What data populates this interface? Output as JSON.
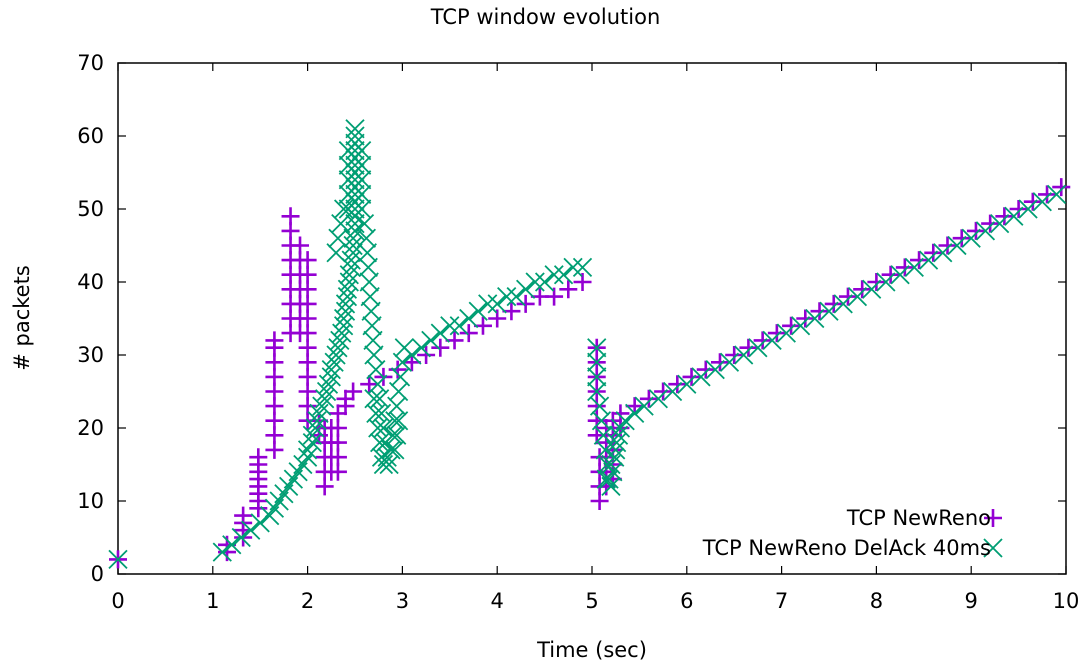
{
  "chart_data": {
    "type": "scatter",
    "title": "TCP window evolution",
    "xlabel": "Time (sec)",
    "ylabel": "# packets",
    "xlim": [
      0,
      10
    ],
    "ylim": [
      0,
      70
    ],
    "xticks": [
      "0",
      "1",
      "2",
      "3",
      "4",
      "5",
      "6",
      "7",
      "8",
      "9",
      "10"
    ],
    "yticks": [
      "0",
      "10",
      "20",
      "30",
      "40",
      "50",
      "60",
      "70"
    ],
    "grid": false,
    "legend_position": "bottom-right",
    "series": [
      {
        "name": "TCP NewReno",
        "marker": "plus",
        "color": "#9400d3",
        "points": [
          [
            0,
            2
          ],
          [
            1.15,
            3
          ],
          [
            1.15,
            4
          ],
          [
            1.32,
            5
          ],
          [
            1.32,
            6
          ],
          [
            1.32,
            7
          ],
          [
            1.32,
            8
          ],
          [
            1.48,
            9
          ],
          [
            1.48,
            10
          ],
          [
            1.48,
            11
          ],
          [
            1.48,
            12
          ],
          [
            1.48,
            13
          ],
          [
            1.48,
            14
          ],
          [
            1.48,
            15
          ],
          [
            1.48,
            16
          ],
          [
            1.65,
            17
          ],
          [
            1.65,
            19
          ],
          [
            1.65,
            21
          ],
          [
            1.65,
            23
          ],
          [
            1.65,
            25
          ],
          [
            1.65,
            27
          ],
          [
            1.65,
            29
          ],
          [
            1.65,
            31
          ],
          [
            1.65,
            32
          ],
          [
            1.82,
            33
          ],
          [
            1.82,
            35
          ],
          [
            1.82,
            37
          ],
          [
            1.82,
            39
          ],
          [
            1.82,
            41
          ],
          [
            1.82,
            43
          ],
          [
            1.82,
            45
          ],
          [
            1.82,
            47
          ],
          [
            1.82,
            49
          ],
          [
            1.92,
            33
          ],
          [
            1.92,
            35
          ],
          [
            1.92,
            37
          ],
          [
            1.92,
            39
          ],
          [
            1.92,
            41
          ],
          [
            1.92,
            43
          ],
          [
            1.92,
            45
          ],
          [
            2.0,
            21
          ],
          [
            2.0,
            23
          ],
          [
            2.0,
            25
          ],
          [
            2.0,
            27
          ],
          [
            2.0,
            29
          ],
          [
            2.0,
            31
          ],
          [
            2.0,
            33
          ],
          [
            2.0,
            35
          ],
          [
            2.0,
            37
          ],
          [
            2.0,
            39
          ],
          [
            2.0,
            41
          ],
          [
            2.0,
            43
          ],
          [
            2.12,
            19
          ],
          [
            2.12,
            21
          ],
          [
            2.18,
            12
          ],
          [
            2.18,
            14
          ],
          [
            2.18,
            16
          ],
          [
            2.18,
            18
          ],
          [
            2.18,
            20
          ],
          [
            2.25,
            14
          ],
          [
            2.25,
            16
          ],
          [
            2.25,
            18
          ],
          [
            2.25,
            20
          ],
          [
            2.32,
            14
          ],
          [
            2.32,
            16
          ],
          [
            2.32,
            18
          ],
          [
            2.32,
            20
          ],
          [
            2.32,
            22
          ],
          [
            2.4,
            23
          ],
          [
            2.4,
            24
          ],
          [
            2.48,
            25
          ],
          [
            2.65,
            26
          ],
          [
            2.8,
            27
          ],
          [
            2.95,
            28
          ],
          [
            3.1,
            29
          ],
          [
            3.25,
            30
          ],
          [
            3.4,
            31
          ],
          [
            3.55,
            32
          ],
          [
            3.7,
            33
          ],
          [
            3.85,
            34
          ],
          [
            4.0,
            35
          ],
          [
            4.15,
            36
          ],
          [
            4.3,
            37
          ],
          [
            4.45,
            38
          ],
          [
            4.6,
            38
          ],
          [
            4.75,
            39
          ],
          [
            4.9,
            40
          ],
          [
            5.05,
            31
          ],
          [
            5.05,
            29
          ],
          [
            5.05,
            27
          ],
          [
            5.05,
            25
          ],
          [
            5.05,
            23
          ],
          [
            5.05,
            21
          ],
          [
            5.05,
            19
          ],
          [
            5.08,
            16
          ],
          [
            5.08,
            14
          ],
          [
            5.08,
            12
          ],
          [
            5.08,
            10
          ],
          [
            5.15,
            12
          ],
          [
            5.15,
            14
          ],
          [
            5.15,
            16
          ],
          [
            5.15,
            18
          ],
          [
            5.15,
            20
          ],
          [
            5.22,
            13
          ],
          [
            5.22,
            15
          ],
          [
            5.22,
            17
          ],
          [
            5.22,
            19
          ],
          [
            5.22,
            21
          ],
          [
            5.3,
            20
          ],
          [
            5.3,
            22
          ],
          [
            5.45,
            23
          ],
          [
            5.6,
            24
          ],
          [
            5.75,
            25
          ],
          [
            5.9,
            26
          ],
          [
            6.05,
            27
          ],
          [
            6.2,
            28
          ],
          [
            6.35,
            29
          ],
          [
            6.5,
            30
          ],
          [
            6.65,
            31
          ],
          [
            6.8,
            32
          ],
          [
            6.95,
            33
          ],
          [
            7.1,
            34
          ],
          [
            7.25,
            35
          ],
          [
            7.4,
            36
          ],
          [
            7.55,
            37
          ],
          [
            7.7,
            38
          ],
          [
            7.85,
            39
          ],
          [
            8.0,
            40
          ],
          [
            8.15,
            41
          ],
          [
            8.3,
            42
          ],
          [
            8.45,
            43
          ],
          [
            8.6,
            44
          ],
          [
            8.75,
            45
          ],
          [
            8.9,
            46
          ],
          [
            9.05,
            47
          ],
          [
            9.2,
            48
          ],
          [
            9.35,
            49
          ],
          [
            9.5,
            50
          ],
          [
            9.65,
            51
          ],
          [
            9.8,
            52
          ],
          [
            9.95,
            53
          ]
        ]
      },
      {
        "name": "TCP NewReno DelAck 40ms",
        "marker": "cross",
        "color": "#009e73",
        "points": [
          [
            0,
            2
          ],
          [
            1.1,
            3
          ],
          [
            1.2,
            4
          ],
          [
            1.3,
            5
          ],
          [
            1.4,
            6
          ],
          [
            1.5,
            7
          ],
          [
            1.6,
            8
          ],
          [
            1.65,
            9
          ],
          [
            1.7,
            10
          ],
          [
            1.75,
            11
          ],
          [
            1.8,
            12
          ],
          [
            1.85,
            13
          ],
          [
            1.9,
            14
          ],
          [
            1.95,
            15
          ],
          [
            2.0,
            16
          ],
          [
            2.0,
            17
          ],
          [
            2.05,
            18
          ],
          [
            2.05,
            19
          ],
          [
            2.08,
            20
          ],
          [
            2.1,
            21
          ],
          [
            2.12,
            22
          ],
          [
            2.15,
            23
          ],
          [
            2.18,
            24
          ],
          [
            2.2,
            25
          ],
          [
            2.22,
            26
          ],
          [
            2.25,
            27
          ],
          [
            2.25,
            28
          ],
          [
            2.28,
            29
          ],
          [
            2.3,
            30
          ],
          [
            2.32,
            31
          ],
          [
            2.34,
            32
          ],
          [
            2.36,
            33
          ],
          [
            2.38,
            34
          ],
          [
            2.38,
            35
          ],
          [
            2.4,
            36
          ],
          [
            2.4,
            37
          ],
          [
            2.42,
            38
          ],
          [
            2.42,
            39
          ],
          [
            2.44,
            40
          ],
          [
            2.44,
            41
          ],
          [
            2.46,
            42
          ],
          [
            2.46,
            43
          ],
          [
            2.48,
            44
          ],
          [
            2.48,
            45
          ],
          [
            2.48,
            46
          ],
          [
            2.5,
            47
          ],
          [
            2.5,
            48
          ],
          [
            2.5,
            49
          ],
          [
            2.5,
            50
          ],
          [
            2.5,
            51
          ],
          [
            2.5,
            52
          ],
          [
            2.5,
            53
          ],
          [
            2.5,
            54
          ],
          [
            2.5,
            55
          ],
          [
            2.5,
            56
          ],
          [
            2.5,
            57
          ],
          [
            2.5,
            58
          ],
          [
            2.5,
            59
          ],
          [
            2.5,
            60
          ],
          [
            2.5,
            61
          ],
          [
            2.43,
            58
          ],
          [
            2.43,
            56
          ],
          [
            2.43,
            54
          ],
          [
            2.43,
            52
          ],
          [
            2.43,
            50
          ],
          [
            2.38,
            50
          ],
          [
            2.35,
            48
          ],
          [
            2.32,
            46
          ],
          [
            2.3,
            44
          ],
          [
            2.57,
            58
          ],
          [
            2.57,
            56
          ],
          [
            2.57,
            54
          ],
          [
            2.57,
            52
          ],
          [
            2.57,
            50
          ],
          [
            2.6,
            48
          ],
          [
            2.62,
            46
          ],
          [
            2.63,
            44
          ],
          [
            2.64,
            42
          ],
          [
            2.65,
            40
          ],
          [
            2.66,
            38
          ],
          [
            2.67,
            36
          ],
          [
            2.68,
            34
          ],
          [
            2.69,
            32
          ],
          [
            2.7,
            30
          ],
          [
            2.72,
            28
          ],
          [
            2.74,
            26
          ],
          [
            2.76,
            24
          ],
          [
            2.78,
            22
          ],
          [
            2.8,
            20
          ],
          [
            2.82,
            18
          ],
          [
            2.84,
            16
          ],
          [
            2.86,
            15
          ],
          [
            2.7,
            24
          ],
          [
            2.72,
            22
          ],
          [
            2.74,
            20
          ],
          [
            2.76,
            18
          ],
          [
            2.78,
            16
          ],
          [
            2.8,
            15
          ],
          [
            2.88,
            17
          ],
          [
            2.9,
            19
          ],
          [
            2.92,
            21
          ],
          [
            2.94,
            23
          ],
          [
            2.96,
            25
          ],
          [
            2.98,
            27
          ],
          [
            3.0,
            29
          ],
          [
            3.02,
            31
          ],
          [
            2.92,
            17
          ],
          [
            2.94,
            19
          ],
          [
            2.96,
            21
          ],
          [
            3.1,
            30
          ],
          [
            3.2,
            31
          ],
          [
            3.3,
            32
          ],
          [
            3.4,
            33
          ],
          [
            3.5,
            34
          ],
          [
            3.6,
            34
          ],
          [
            3.7,
            35
          ],
          [
            3.8,
            36
          ],
          [
            3.9,
            37
          ],
          [
            4.0,
            37
          ],
          [
            4.1,
            38
          ],
          [
            4.2,
            38
          ],
          [
            4.3,
            39
          ],
          [
            4.4,
            40
          ],
          [
            4.5,
            40
          ],
          [
            4.6,
            41
          ],
          [
            4.7,
            41
          ],
          [
            4.8,
            42
          ],
          [
            4.9,
            42
          ],
          [
            5.05,
            31
          ],
          [
            5.05,
            29
          ],
          [
            5.05,
            27
          ],
          [
            5.05,
            25
          ],
          [
            5.08,
            23
          ],
          [
            5.1,
            21
          ],
          [
            5.12,
            19
          ],
          [
            5.14,
            17
          ],
          [
            5.16,
            15
          ],
          [
            5.18,
            13
          ],
          [
            5.2,
            12
          ],
          [
            5.22,
            14
          ],
          [
            5.24,
            16
          ],
          [
            5.26,
            18
          ],
          [
            5.28,
            19
          ],
          [
            5.15,
            13
          ],
          [
            5.2,
            15
          ],
          [
            5.25,
            17
          ],
          [
            5.3,
            20
          ],
          [
            5.35,
            21
          ],
          [
            5.45,
            22
          ],
          [
            5.55,
            23
          ],
          [
            5.7,
            24
          ],
          [
            5.85,
            25
          ],
          [
            6.0,
            26
          ],
          [
            6.15,
            27
          ],
          [
            6.3,
            28
          ],
          [
            6.45,
            29
          ],
          [
            6.6,
            30
          ],
          [
            6.75,
            31
          ],
          [
            6.9,
            32
          ],
          [
            7.05,
            33
          ],
          [
            7.2,
            34
          ],
          [
            7.35,
            35
          ],
          [
            7.5,
            36
          ],
          [
            7.65,
            37
          ],
          [
            7.8,
            38
          ],
          [
            7.95,
            39
          ],
          [
            8.1,
            40
          ],
          [
            8.25,
            41
          ],
          [
            8.4,
            42
          ],
          [
            8.55,
            43
          ],
          [
            8.7,
            44
          ],
          [
            8.85,
            45
          ],
          [
            9.0,
            46
          ],
          [
            9.15,
            47
          ],
          [
            9.3,
            48
          ],
          [
            9.45,
            49
          ],
          [
            9.6,
            50
          ],
          [
            9.75,
            51
          ],
          [
            9.9,
            52
          ]
        ]
      }
    ]
  }
}
